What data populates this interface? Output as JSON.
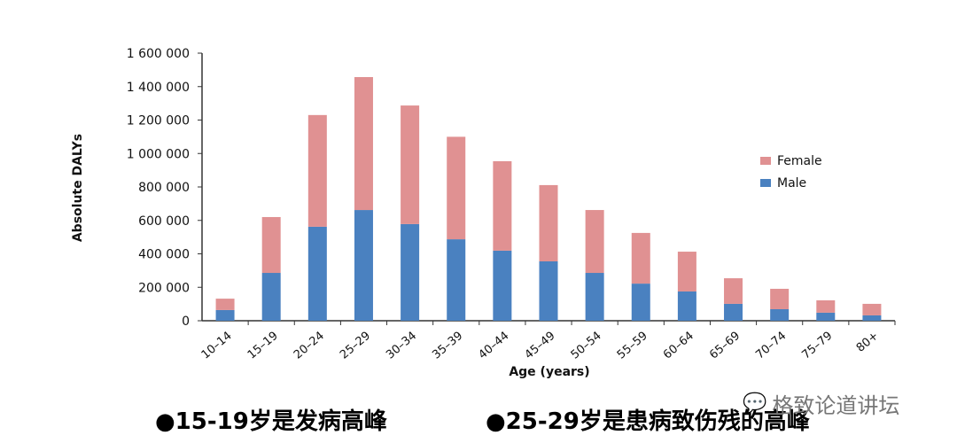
{
  "chart_data": {
    "type": "bar",
    "stacked": true,
    "xlabel": "Age (years)",
    "ylabel": "Absolute DALYs",
    "ylim": [
      0,
      1600000
    ],
    "yticks": [
      0,
      200000,
      400000,
      600000,
      800000,
      1000000,
      1200000,
      1400000,
      1600000
    ],
    "ytick_labels": [
      "0",
      "200 000",
      "400 000",
      "600 000",
      "800 000",
      "1 000 000",
      "1 200 000",
      "1 400 000",
      "1 600 000"
    ],
    "categories": [
      "10–14",
      "15–19",
      "20–24",
      "25–29",
      "30–34",
      "35–39",
      "40–44",
      "45–49",
      "50–54",
      "55–59",
      "60–64",
      "65–69",
      "70–74",
      "75–79",
      "80+"
    ],
    "series": [
      {
        "name": "Male",
        "color": "#4a81c0",
        "values": [
          64000,
          286000,
          562000,
          662000,
          578000,
          487000,
          419000,
          355000,
          286000,
          222000,
          175000,
          101000,
          69000,
          48000,
          32000
        ]
      },
      {
        "name": "Female",
        "color": "#e09192",
        "values": [
          68000,
          334000,
          668000,
          795000,
          709000,
          613000,
          535000,
          456000,
          376000,
          303000,
          238000,
          153000,
          122000,
          74000,
          69000
        ]
      }
    ],
    "legend": {
      "placement": "right",
      "order": [
        "Female",
        "Male"
      ]
    },
    "grid": false
  },
  "captions": [
    "●15-19岁是发病高峰",
    "●25-29岁是患病致伤残的高峰"
  ],
  "watermark": {
    "icon": "wechat-icon",
    "text": "格致论道讲坛"
  }
}
